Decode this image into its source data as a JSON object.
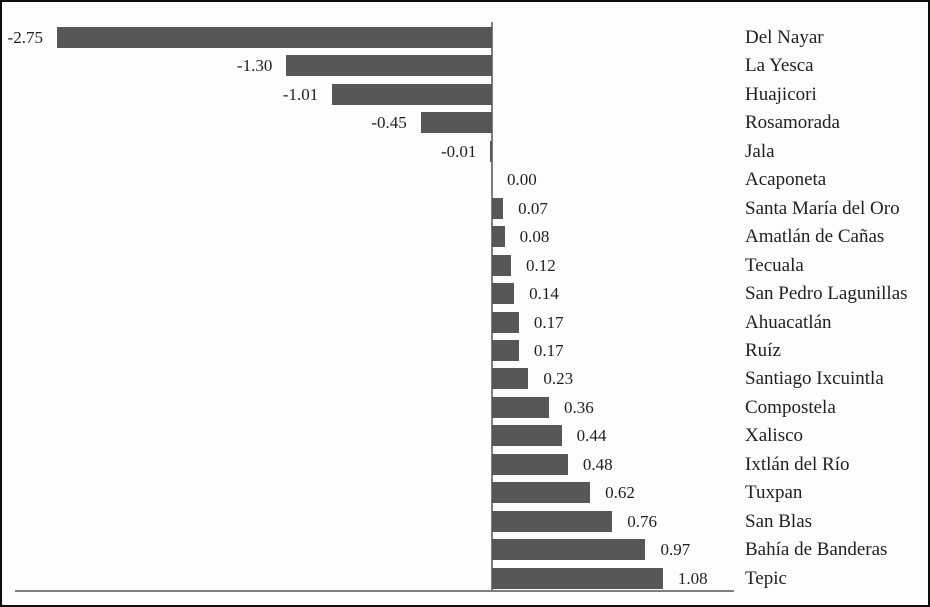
{
  "chart_data": {
    "type": "bar",
    "orientation": "horizontal",
    "title": "",
    "xlabel": "",
    "ylabel": "",
    "xlim": [
      -2.75,
      1.08
    ],
    "grid": false,
    "legend": false,
    "zero_axis_line": true,
    "bar_color": "#575757",
    "axis_color": "#7d7d7d",
    "categories": [
      "Del Nayar",
      "La Yesca",
      "Huajicori",
      "Rosamorada",
      "Jala",
      "Acaponeta",
      "Santa María del Oro",
      "Amatlán de Cañas",
      "Tecuala",
      "San Pedro Lagunillas",
      "Ahuacatlán",
      "Ruíz",
      "Santiago Ixcuintla",
      "Compostela",
      "Xalisco",
      "Ixtlán del Río",
      "Tuxpan",
      "San Blas",
      "Bahía de Banderas",
      "Tepic"
    ],
    "values": [
      -2.75,
      -1.3,
      -1.01,
      -0.45,
      -0.01,
      0.0,
      0.07,
      0.08,
      0.12,
      0.14,
      0.17,
      0.17,
      0.23,
      0.36,
      0.44,
      0.48,
      0.62,
      0.76,
      0.97,
      1.08
    ],
    "value_labels": [
      "-2.75",
      "-1.30",
      "-1.01",
      "-0.45",
      "-0.01",
      "0.00",
      "0.07",
      "0.08",
      "0.12",
      "0.14",
      "0.17",
      "0.17",
      "0.23",
      "0.36",
      "0.44",
      "0.48",
      "0.62",
      "0.76",
      "0.97",
      "1.08"
    ]
  }
}
